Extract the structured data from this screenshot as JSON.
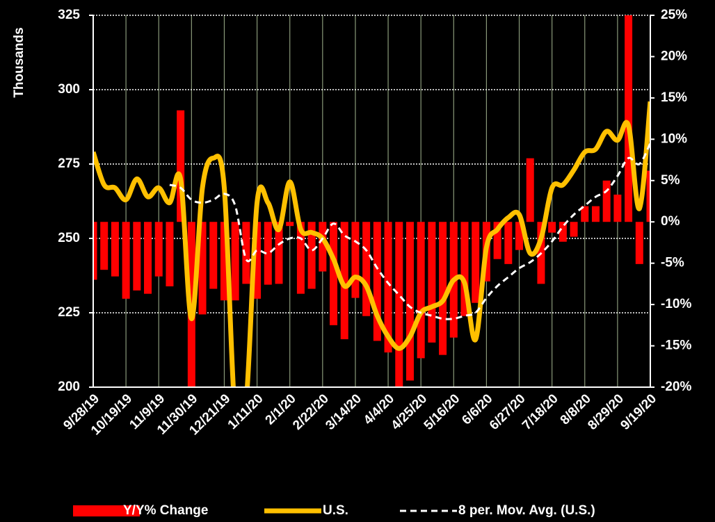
{
  "chart_data": {
    "type": "bar-line",
    "y_label": "Thousands",
    "categories": [
      "9/28/19",
      null,
      null,
      "10/19/19",
      null,
      null,
      "11/9/19",
      null,
      null,
      "11/30/19",
      null,
      null,
      "12/21/19",
      null,
      null,
      "1/11/20",
      null,
      null,
      "2/1/20",
      null,
      null,
      "2/22/20",
      null,
      null,
      "3/14/20",
      null,
      null,
      "4/4/20",
      null,
      null,
      "4/25/20",
      null,
      null,
      "5/16/20",
      null,
      null,
      "6/6/20",
      null,
      null,
      "6/27/20",
      null,
      null,
      "7/18/20",
      null,
      null,
      "8/8/20",
      null,
      null,
      "8/29/20",
      null,
      null,
      "9/19/20"
    ],
    "series": [
      {
        "name": "Y/Y% Change",
        "kind": "bar",
        "axis": "y2",
        "color": "#ff0000",
        "values": [
          -7.0,
          -5.8,
          -6.6,
          -9.3,
          -8.3,
          -8.7,
          -6.6,
          -7.8,
          13.5,
          -20,
          -11.2,
          -8.1,
          -9.5,
          -9.5,
          -7.5,
          -9.3,
          -7.6,
          -7.5,
          -0.5,
          -8.7,
          -8.1,
          -6.0,
          -12.5,
          -14.2,
          -9.2,
          -11.4,
          -14.4,
          -15.8,
          -20,
          -19.2,
          -16.5,
          -14.6,
          -16.1,
          -14.0,
          -11.4,
          -9.8,
          -7.2,
          -4.5,
          -5.1,
          -3.4,
          7.7,
          -7.5,
          -1.3,
          -2.4,
          -1.8,
          1.9,
          1.9,
          5.0,
          3.3,
          25,
          -5.1,
          6.2
        ]
      },
      {
        "name": "U.S.",
        "kind": "line",
        "color": "#ffc000",
        "values": [
          279,
          268,
          267,
          263,
          270,
          264,
          267,
          262,
          270,
          223,
          267,
          277,
          267,
          190,
          195,
          262,
          262,
          253,
          269,
          253,
          252,
          250,
          243,
          234,
          237,
          234,
          224,
          217,
          213,
          217,
          225,
          227,
          229,
          236,
          235,
          216,
          247,
          253,
          257,
          258,
          245,
          250,
          267,
          268,
          273,
          279,
          280,
          286,
          283,
          288,
          260,
          296
        ]
      },
      {
        "name": "8 per. Mov. Avg. (U.S.)",
        "kind": "dashed",
        "color": "#ffffff",
        "values": [
          null,
          null,
          null,
          null,
          null,
          null,
          null,
          268,
          267,
          263,
          262,
          263,
          265,
          261,
          243,
          246,
          245,
          248,
          250,
          250,
          246,
          250,
          255,
          251,
          249,
          246,
          240,
          235,
          231,
          227,
          225,
          224,
          223,
          223,
          224,
          225,
          230,
          234,
          237,
          240,
          242,
          245,
          249,
          254,
          258,
          261,
          264,
          266,
          271,
          277,
          275,
          282
        ]
      }
    ],
    "ylim": [
      200,
      325
    ],
    "yticks": [
      200,
      225,
      250,
      275,
      300,
      325
    ],
    "y2lim": [
      -20,
      25
    ],
    "y2ticks": [
      {
        "value": -20,
        "label": "-20%"
      },
      {
        "value": -15,
        "label": "-15%"
      },
      {
        "value": -10,
        "label": "-10%"
      },
      {
        "value": -5,
        "label": "-5%"
      },
      {
        "value": 0,
        "label": "0%"
      },
      {
        "value": 5,
        "label": "5%"
      },
      {
        "value": 10,
        "label": "10%"
      },
      {
        "value": 15,
        "label": "15%"
      },
      {
        "value": 20,
        "label": "20%"
      },
      {
        "value": 25,
        "label": "25%"
      }
    ],
    "grid": true,
    "legend": "bottom",
    "background": "#000000"
  }
}
